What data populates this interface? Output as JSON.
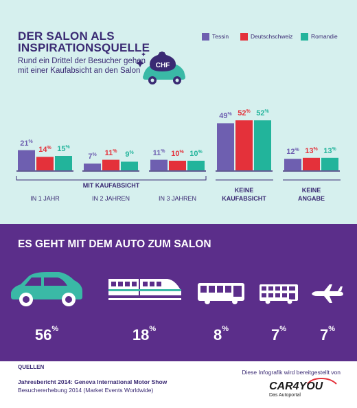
{
  "header": {
    "title_line1": "DER SALON ALS",
    "title_line2": "INSPIRATIONSQUELLE",
    "subtitle": "Rund ein Drittel der Besucher gehen mit einer Kaufabsicht an den Salon",
    "icon_label": "CHF"
  },
  "colors": {
    "Tessin": "#6e5fb0",
    "Deutschschweiz": "#e4313a",
    "Romandie": "#22b49b",
    "text": "#3a2a73",
    "panel": "#5b2e8a",
    "vehicle": "#3ab9a6"
  },
  "chart_data": [
    {
      "type": "bar",
      "title": "DER SALON ALS INSPIRATIONSQUELLE",
      "categories": [
        "IN 1 JAHR",
        "IN 2 JAHREN",
        "IN 3 JAHREN",
        "KEINE KAUFABSICHT",
        "KEINE ANGABE"
      ],
      "group_label": "MIT KAUFABSICHT",
      "legend_position": "top-right",
      "series": [
        {
          "name": "Tessin",
          "values": [
            21,
            7,
            11,
            49,
            12
          ]
        },
        {
          "name": "Deutschschweiz",
          "values": [
            14,
            11,
            10,
            52,
            13
          ]
        },
        {
          "name": "Romandie",
          "values": [
            15,
            9,
            10,
            52,
            13
          ]
        }
      ],
      "unit": "%"
    },
    {
      "type": "table",
      "title": "ES GEHT MIT DEM AUTO ZUM SALON",
      "categories": [
        "car-icon",
        "train-icon",
        "bus-icon",
        "double-decker-bus-icon",
        "airplane-icon"
      ],
      "values": [
        56,
        18,
        8,
        7,
        7
      ],
      "unit": "%"
    }
  ],
  "sources": {
    "heading": "QUELLEN",
    "line1": "Jahresbericht 2014: Geneva International Motor Show",
    "line2": "Besuchererhebung 2014 (Market Events Worldwide)"
  },
  "provider": {
    "text": "Diese Infografik wird bereitgestellt von",
    "logo": "CAR4YOU",
    "logo_sub": "Das Autoportal"
  }
}
